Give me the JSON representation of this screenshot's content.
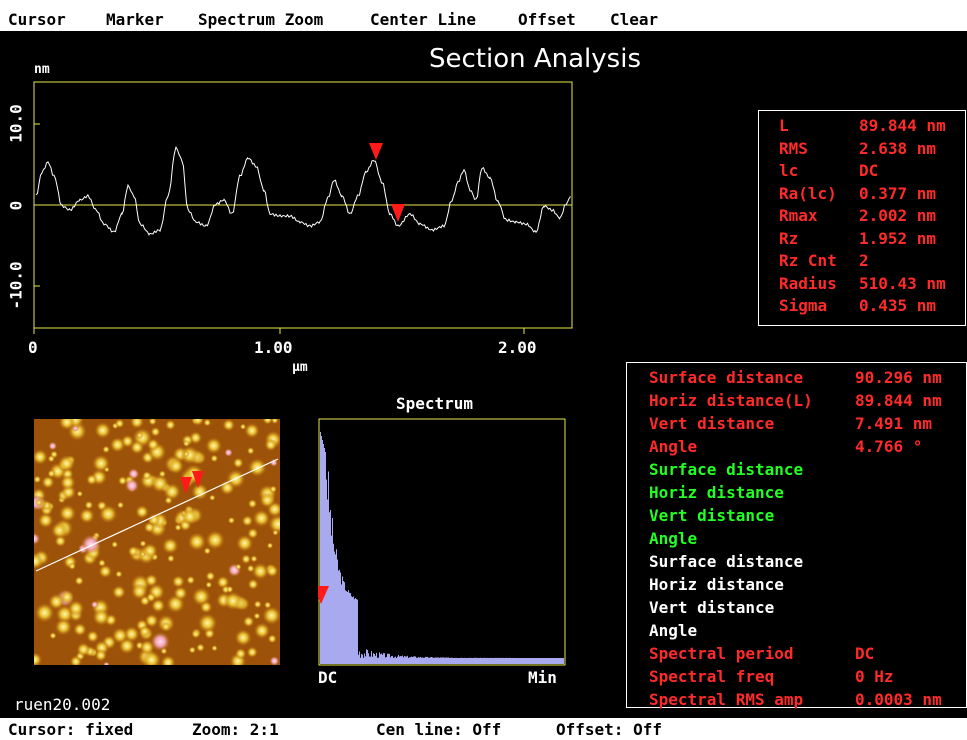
{
  "menu": [
    "Cursor",
    "Marker",
    "Spectrum Zoom",
    "Center Line",
    "Offset",
    "Clear"
  ],
  "title": "Section Analysis",
  "profile": {
    "y_unit": "nm",
    "x_unit": "µm",
    "y_ticks": [
      "10.0",
      "0",
      "-10.0"
    ],
    "x_ticks": [
      "0",
      "1.00",
      "2.00"
    ],
    "line_color": "#ffffff",
    "frame_color": "#e8e84a",
    "marker_color": "#ff1a1a"
  },
  "stats": [
    {
      "label": "L",
      "value": "89.844 nm"
    },
    {
      "label": "RMS",
      "value": "2.638 nm"
    },
    {
      "label": "lc",
      "value": "DC"
    },
    {
      "label": "Ra(lc)",
      "value": "0.377 nm"
    },
    {
      "label": "Rmax",
      "value": "2.002 nm"
    },
    {
      "label": "Rz",
      "value": "1.952 nm"
    },
    {
      "label": "Rz Cnt",
      "value": "2"
    },
    {
      "label": "Radius",
      "value": "510.43 nm"
    },
    {
      "label": "Sigma",
      "value": "0.435 nm"
    }
  ],
  "measurements": {
    "red": [
      {
        "label": "Surface distance",
        "value": "90.296 nm"
      },
      {
        "label": "Horiz distance(L)",
        "value": "89.844 nm"
      },
      {
        "label": "Vert distance",
        "value": "7.491 nm"
      },
      {
        "label": "Angle",
        "value": "4.766 °"
      }
    ],
    "green": [
      "Surface distance",
      "Horiz distance",
      "Vert distance",
      "Angle"
    ],
    "white": [
      "Surface distance",
      "Horiz distance",
      "Vert distance",
      "Angle"
    ],
    "spectral": [
      {
        "label": "Spectral period",
        "value": "DC"
      },
      {
        "label": "Spectral freq",
        "value": "0 Hz"
      },
      {
        "label": "Spectral RMS amp",
        "value": "0.0003 nm"
      }
    ]
  },
  "spectrum": {
    "title": "Spectrum",
    "left_label": "DC",
    "right_label": "Min",
    "bar_color": "#a9a9f0"
  },
  "image_name": "ruen20.002",
  "status": {
    "cursor": "Cursor: fixed",
    "zoom": "Zoom: 2:1",
    "cen_line": "Cen line: Off",
    "offset": "Offset: Off"
  }
}
